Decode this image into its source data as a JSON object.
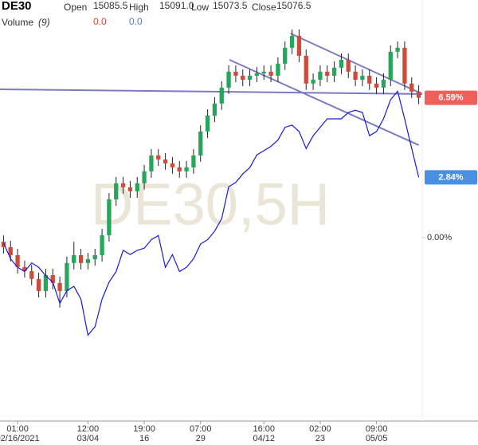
{
  "header": {
    "symbol": "DE30",
    "fields": [
      {
        "label": "Open",
        "value": "15085.5"
      },
      {
        "label": "High",
        "value": "15091.0"
      },
      {
        "label": "Low",
        "value": "15073.5"
      },
      {
        "label": "Close",
        "value": "15076.5"
      }
    ],
    "volume_label": "Volume",
    "volume_period": "(9)",
    "volume_values": [
      "0.0",
      "0.0"
    ]
  },
  "chart_data": {
    "type": "candlestick",
    "watermark": "DE30,5H",
    "ylim": [
      -8.65,
      11.2
    ],
    "yticks": [
      {
        "value": 0,
        "label": "0.00%"
      }
    ],
    "xlim": [
      -0.5,
      59.5
    ],
    "xticks": [
      {
        "value": 2,
        "label": "01:00",
        "sublabel": "02/16/2021"
      },
      {
        "value": 12,
        "label": "12:00",
        "sublabel": "03/04"
      },
      {
        "value": 20,
        "label": "19:00",
        "sublabel": "16"
      },
      {
        "value": 28,
        "label": "07:00",
        "sublabel": "29"
      },
      {
        "value": 37,
        "label": "16:00",
        "sublabel": "04/12"
      },
      {
        "value": 45,
        "label": "02:00",
        "sublabel": "23"
      },
      {
        "value": 53,
        "label": "09:00",
        "sublabel": "05/05"
      }
    ],
    "candles": {
      "up_color": "#26a65b",
      "down_color": "#d04a3a",
      "badge_color": "#f0605a",
      "open": [
        -0.2,
        -0.45,
        -0.83,
        -1.39,
        -1.58,
        -1.95,
        -2.52,
        -1.77,
        -2.14,
        -2.52,
        -1.2,
        -0.83,
        -1.2,
        -1.02,
        -0.83,
        0.11,
        1.8,
        2.56,
        2.37,
        2.18,
        2.56,
        3.12,
        3.87,
        3.68,
        3.5,
        3.31,
        3.12,
        3.31,
        3.87,
        5.0,
        5.75,
        6.32,
        7.07,
        7.82,
        7.63,
        7.44,
        7.63,
        7.74,
        7.82,
        7.63,
        8.2,
        8.95,
        9.51,
        8.57,
        7.26,
        7.44,
        7.82,
        7.63,
        8.01,
        8.38,
        7.82,
        7.44,
        7.63,
        7.26,
        7.07,
        7.44,
        8.76,
        8.95,
        7.26,
        6.88
      ],
      "high": [
        0.1,
        -0.15,
        -0.53,
        -1.09,
        -1.28,
        -1.65,
        -1.47,
        -1.47,
        -1.84,
        -0.9,
        -0.2,
        -0.53,
        -0.72,
        -0.53,
        0.41,
        2.1,
        2.86,
        2.86,
        2.67,
        2.86,
        3.42,
        4.17,
        4.17,
        3.98,
        3.8,
        3.61,
        3.61,
        4.17,
        5.3,
        6.05,
        6.62,
        7.37,
        8.12,
        8.12,
        7.93,
        7.93,
        8.04,
        8.12,
        8.12,
        8.5,
        9.25,
        9.81,
        9.81,
        8.87,
        7.74,
        8.12,
        8.12,
        8.31,
        8.68,
        8.68,
        8.12,
        7.93,
        7.93,
        7.56,
        7.74,
        9.06,
        9.25,
        9.25,
        7.56,
        7.18
      ],
      "low": [
        -0.75,
        -1.13,
        -1.69,
        -1.88,
        -2.25,
        -2.82,
        -2.82,
        -2.44,
        -3.3,
        -2.82,
        -1.5,
        -1.5,
        -1.5,
        -1.32,
        -1.13,
        -0.19,
        1.5,
        2.07,
        1.88,
        1.88,
        2.26,
        2.82,
        3.38,
        3.2,
        3.01,
        2.82,
        2.82,
        3.01,
        3.57,
        4.7,
        5.45,
        6.02,
        6.77,
        7.33,
        7.14,
        7.14,
        7.33,
        7.44,
        7.33,
        7.33,
        7.9,
        8.65,
        8.27,
        6.96,
        6.96,
        7.14,
        7.33,
        7.33,
        7.71,
        7.52,
        7.14,
        7.14,
        6.96,
        6.77,
        6.77,
        7.14,
        8.46,
        6.96,
        6.58,
        6.29
      ],
      "close": [
        -0.45,
        -0.83,
        -1.39,
        -1.58,
        -1.95,
        -2.52,
        -1.77,
        -2.14,
        -2.52,
        -1.2,
        -0.83,
        -1.2,
        -1.02,
        -0.83,
        0.11,
        1.8,
        2.56,
        2.37,
        2.18,
        2.56,
        3.12,
        3.87,
        3.68,
        3.5,
        3.31,
        3.12,
        3.31,
        3.87,
        5.0,
        5.75,
        6.32,
        7.07,
        7.82,
        7.63,
        7.44,
        7.63,
        7.74,
        7.82,
        7.63,
        8.2,
        8.95,
        9.51,
        8.57,
        7.26,
        7.44,
        7.82,
        7.63,
        8.01,
        8.38,
        7.82,
        7.44,
        7.63,
        7.26,
        7.07,
        7.44,
        8.76,
        8.95,
        7.26,
        6.88,
        6.59
      ],
      "last_label": "6.59%"
    },
    "line": {
      "color": "#1a1ad6",
      "badge_color": "#4a90e2",
      "values": [
        -0.26,
        -1.0,
        -1.4,
        -1.6,
        -1.2,
        -1.4,
        -1.8,
        -2.1,
        -3.1,
        -2.5,
        -2.3,
        -2.9,
        -4.6,
        -4.2,
        -2.9,
        -2.1,
        -1.6,
        -0.6,
        -0.8,
        -0.6,
        -0.5,
        -0.1,
        0.1,
        -1.4,
        -0.8,
        -1.6,
        -1.4,
        -1.0,
        -0.3,
        -0.1,
        0.3,
        0.9,
        2.4,
        2.6,
        3.0,
        3.3,
        3.9,
        4.1,
        4.3,
        4.6,
        5.2,
        5.3,
        5.0,
        4.2,
        4.8,
        5.2,
        5.6,
        5.6,
        5.6,
        5.9,
        6.0,
        5.9,
        4.8,
        5.0,
        5.6,
        6.5,
        6.9,
        5.6,
        4.2,
        2.84
      ],
      "last_label": "2.84%"
    },
    "trendlines": {
      "color": "#7b7bc4",
      "lines": [
        {
          "x": [
            -0.5,
            59.5
          ],
          "y": [
            6.99,
            6.77
          ]
        },
        {
          "x": [
            40.8,
            59.5
          ],
          "y": [
            9.62,
            6.77
          ]
        },
        {
          "x": [
            32.1,
            59.0
          ],
          "y": [
            8.38,
            4.36
          ]
        }
      ]
    }
  }
}
